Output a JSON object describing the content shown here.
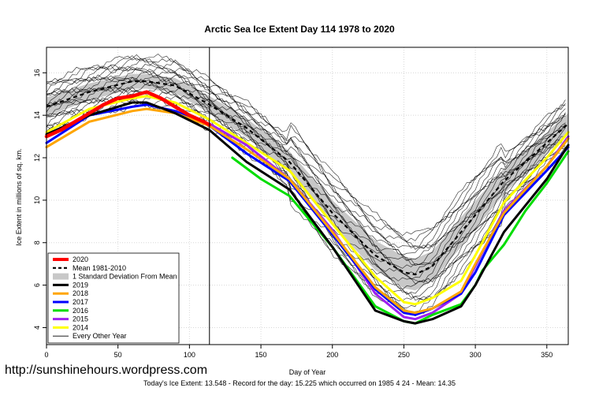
{
  "title": "Arctic Sea Ice Extent Day 114 1978 to 2020",
  "watermark": "http://sunshinehours.wordpress.com",
  "footer": "Today's Ice Extent: 13.548  - Record for the day: 15.225 which occurred on 1985 4 24  - Mean: 14.35",
  "chart_data": {
    "type": "line",
    "title": "Arctic Sea Ice Extent Day 114 1978 to 2020",
    "xlabel": "Day of Year",
    "ylabel": "Ice Extent in millions of sq. km.",
    "xlim": [
      0,
      365
    ],
    "ylim": [
      3.2,
      17.2
    ],
    "xticks": [
      0,
      50,
      100,
      150,
      200,
      250,
      300,
      350
    ],
    "yticks": [
      4,
      6,
      8,
      10,
      12,
      14,
      16
    ],
    "grid": true,
    "current_day_marker": 114,
    "legend_position": "bottom-left",
    "legend": [
      {
        "label": "2020",
        "color": "#ff0000"
      },
      {
        "label": "Mean 1981-2010",
        "color": "#000000",
        "style": "dashed"
      },
      {
        "label": "1 Standard Deviation From Mean",
        "color": "#c8c8c8",
        "style": "band"
      },
      {
        "label": "2019",
        "color": "#000000"
      },
      {
        "label": "2018",
        "color": "#ffa500"
      },
      {
        "label": "2017",
        "color": "#0000ff"
      },
      {
        "label": "2016",
        "color": "#00dd00"
      },
      {
        "label": "2015",
        "color": "#a020f0"
      },
      {
        "label": "2014",
        "color": "#ffff00"
      },
      {
        "label": "Every Other Year",
        "color": "#000000",
        "style": "thin"
      }
    ],
    "mean": {
      "name": "Mean 1981-2010",
      "x": [
        0,
        30,
        60,
        70,
        90,
        114,
        140,
        170,
        200,
        230,
        250,
        258,
        270,
        290,
        320,
        350,
        365
      ],
      "y": [
        14.4,
        15.1,
        15.6,
        15.6,
        15.4,
        14.5,
        13.4,
        11.8,
        9.4,
        7.4,
        6.6,
        6.5,
        6.9,
        8.5,
        10.9,
        12.7,
        13.6
      ]
    },
    "std_band": {
      "upper": [
        14.85,
        15.5,
        15.95,
        15.95,
        15.75,
        14.9,
        13.85,
        12.3,
        10.0,
        8.1,
        7.35,
        7.25,
        7.6,
        9.2,
        11.5,
        13.2,
        14.1
      ],
      "lower": [
        13.95,
        14.7,
        15.25,
        15.25,
        15.05,
        14.1,
        12.95,
        11.3,
        8.8,
        6.7,
        5.85,
        5.75,
        6.2,
        7.8,
        10.3,
        12.2,
        13.1
      ]
    },
    "series": [
      {
        "name": "2020",
        "color": "#ff0000",
        "width": 4.5,
        "x": [
          0,
          10,
          20,
          30,
          40,
          50,
          60,
          70,
          80,
          90,
          100,
          110,
          114
        ],
        "y": [
          13.0,
          13.3,
          13.7,
          14.1,
          14.5,
          14.8,
          14.9,
          15.1,
          14.8,
          14.4,
          14.0,
          13.7,
          13.55
        ]
      },
      {
        "name": "2019",
        "color": "#000000",
        "width": 3,
        "x": [
          0,
          30,
          60,
          70,
          90,
          114,
          140,
          170,
          200,
          230,
          250,
          258,
          270,
          290,
          300,
          320,
          350,
          365
        ],
        "y": [
          13.1,
          14.0,
          14.6,
          14.6,
          14.1,
          13.3,
          11.8,
          10.5,
          7.8,
          4.8,
          4.3,
          4.2,
          4.4,
          5.0,
          6.0,
          8.5,
          11.0,
          12.6
        ]
      },
      {
        "name": "2018",
        "color": "#ffa500",
        "width": 3,
        "x": [
          0,
          30,
          60,
          70,
          90,
          114,
          140,
          170,
          200,
          230,
          250,
          258,
          270,
          290,
          300,
          320,
          350,
          365
        ],
        "y": [
          12.5,
          13.7,
          14.2,
          14.3,
          14.1,
          13.5,
          12.4,
          11.0,
          8.5,
          5.9,
          4.8,
          4.7,
          4.9,
          5.7,
          7.0,
          9.4,
          11.6,
          12.9
        ]
      },
      {
        "name": "2017",
        "color": "#0000ff",
        "width": 3,
        "x": [
          0,
          30,
          60,
          70,
          90,
          114,
          140,
          170,
          200,
          230,
          250,
          258,
          270,
          290,
          300,
          320,
          350,
          365
        ],
        "y": [
          12.7,
          14.0,
          14.4,
          14.5,
          14.2,
          13.5,
          12.2,
          10.9,
          8.4,
          5.8,
          4.7,
          4.6,
          4.9,
          5.6,
          6.6,
          9.3,
          11.4,
          12.5
        ]
      },
      {
        "name": "2016",
        "color": "#00dd00",
        "width": 3,
        "x": [
          130,
          150,
          170,
          200,
          230,
          250,
          258,
          270,
          290,
          300,
          305,
          320,
          335,
          350,
          365
        ],
        "y": [
          12.0,
          11.0,
          10.2,
          7.8,
          5.0,
          4.3,
          4.2,
          4.6,
          5.1,
          6.0,
          6.7,
          7.9,
          9.5,
          10.8,
          12.3
        ]
      },
      {
        "name": "2015",
        "color": "#a020f0",
        "width": 3,
        "x": [
          114,
          140,
          170,
          200,
          230,
          250,
          258,
          270,
          290,
          300,
          320,
          350,
          365
        ],
        "y": [
          13.6,
          12.6,
          11.0,
          8.6,
          5.6,
          4.5,
          4.4,
          4.7,
          5.6,
          6.9,
          9.5,
          11.6,
          13.0
        ]
      },
      {
        "name": "2014",
        "color": "#ffff00",
        "width": 3,
        "x": [
          0,
          30,
          60,
          70,
          90,
          114,
          140,
          170,
          200,
          230,
          250,
          258,
          270,
          290,
          300,
          320,
          350,
          365
        ],
        "y": [
          13.2,
          14.3,
          14.8,
          14.9,
          14.6,
          13.8,
          12.7,
          11.4,
          8.9,
          6.4,
          5.2,
          5.1,
          5.4,
          6.2,
          7.4,
          9.9,
          12.0,
          13.2
        ]
      }
    ]
  }
}
